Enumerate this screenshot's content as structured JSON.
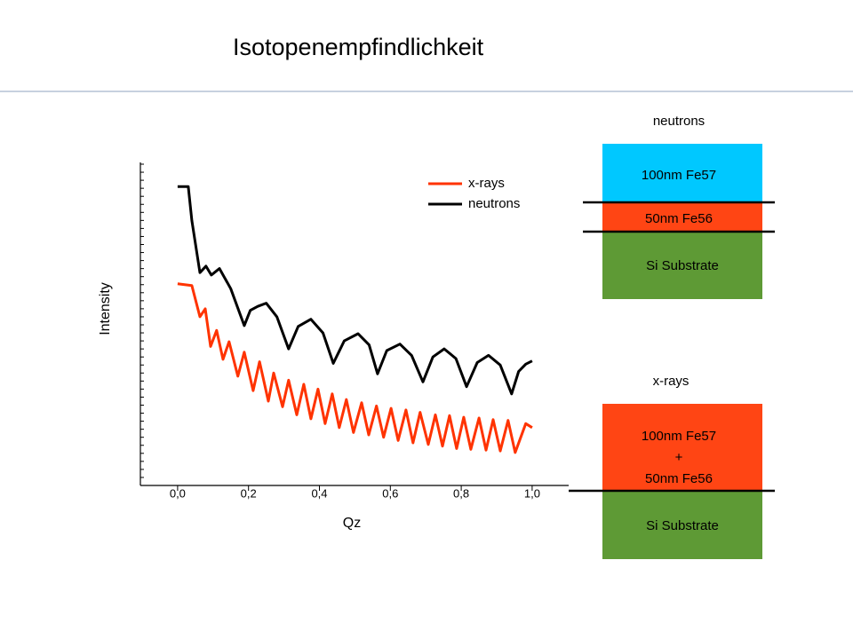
{
  "title": "Isotopenempfindlichkeit",
  "chart_data": {
    "type": "line",
    "xlabel": "Qz",
    "ylabel": "Intensity",
    "xlim": [
      -0.105,
      1.103
    ],
    "xticks": [
      {
        "value": 0,
        "label": "0,0"
      },
      {
        "value": 0.2,
        "label": "0,2"
      },
      {
        "value": 0.4,
        "label": "0,4"
      },
      {
        "value": 0.6,
        "label": "0,6"
      },
      {
        "value": 0.8,
        "label": "0,8"
      },
      {
        "value": 1.0,
        "label": "1,0"
      }
    ],
    "ylim": [
      0,
      40
    ],
    "yticks": [
      0,
      1,
      2,
      3,
      4,
      5,
      6,
      7,
      8,
      9,
      10,
      11,
      12,
      13,
      14,
      15,
      16,
      17,
      18,
      19,
      20,
      21,
      22,
      23,
      24,
      25,
      26,
      27,
      28,
      29,
      30,
      31,
      32,
      33,
      34,
      35,
      36,
      37,
      38,
      39,
      40
    ],
    "series": [
      {
        "name": "x-rays",
        "color": "#ff3300",
        "x": [
          0,
          0.04,
          0.063,
          0.078,
          0.093,
          0.11,
          0.128,
          0.145,
          0.17,
          0.188,
          0.213,
          0.231,
          0.256,
          0.271,
          0.296,
          0.313,
          0.336,
          0.356,
          0.376,
          0.396,
          0.416,
          0.436,
          0.456,
          0.476,
          0.496,
          0.519,
          0.539,
          0.561,
          0.581,
          0.602,
          0.622,
          0.644,
          0.664,
          0.684,
          0.707,
          0.727,
          0.747,
          0.767,
          0.787,
          0.807,
          0.827,
          0.85,
          0.87,
          0.89,
          0.91,
          0.932,
          0.952,
          0.982,
          1.0
        ],
        "values": [
          25.1,
          24.9,
          21.0,
          22.0,
          17.3,
          19.3,
          15.7,
          17.9,
          13.6,
          16.6,
          11.8,
          15.4,
          10.5,
          14.0,
          9.8,
          13.1,
          8.8,
          12.6,
          8.3,
          12.0,
          7.7,
          11.4,
          7.2,
          10.7,
          6.6,
          10.3,
          6.3,
          9.9,
          6.0,
          9.6,
          5.6,
          9.4,
          5.3,
          9.1,
          5.1,
          8.8,
          4.9,
          8.7,
          4.6,
          8.5,
          4.5,
          8.4,
          4.4,
          8.2,
          4.3,
          8.1,
          4.1,
          7.7,
          7.2
        ]
      },
      {
        "name": "neutrons",
        "color": "#000000",
        "x": [
          0,
          0.03,
          0.04,
          0.063,
          0.08,
          0.095,
          0.118,
          0.15,
          0.188,
          0.205,
          0.226,
          0.25,
          0.28,
          0.313,
          0.34,
          0.376,
          0.41,
          0.439,
          0.47,
          0.509,
          0.54,
          0.564,
          0.59,
          0.627,
          0.66,
          0.692,
          0.72,
          0.752,
          0.785,
          0.815,
          0.845,
          0.877,
          0.91,
          0.942,
          0.962,
          0.982,
          1.0
        ],
        "values": [
          37.2,
          37.2,
          33,
          26.5,
          27.3,
          26.2,
          27.0,
          24.5,
          19.9,
          21.8,
          22.3,
          22.7,
          21,
          17.0,
          19.8,
          20.7,
          19,
          15.2,
          18,
          18.9,
          17.5,
          13.9,
          16.8,
          17.6,
          16.2,
          12.9,
          16,
          17.0,
          15.8,
          12.3,
          15.3,
          16.2,
          15,
          11.4,
          14.2,
          15.1,
          15.5
        ]
      }
    ]
  },
  "diagrams": [
    {
      "label": "neutrons",
      "layers": [
        {
          "lines": [
            "100nm Fe57"
          ]
        },
        {
          "lines": [
            "50nm Fe56"
          ]
        },
        {
          "lines": [
            "Si Substrate"
          ]
        }
      ]
    },
    {
      "label": "x-rays",
      "layers": [
        {
          "lines": [
            "100nm Fe57",
            "+",
            "50nm Fe56"
          ]
        },
        {
          "lines": [
            "Si Substrate"
          ]
        }
      ]
    }
  ]
}
